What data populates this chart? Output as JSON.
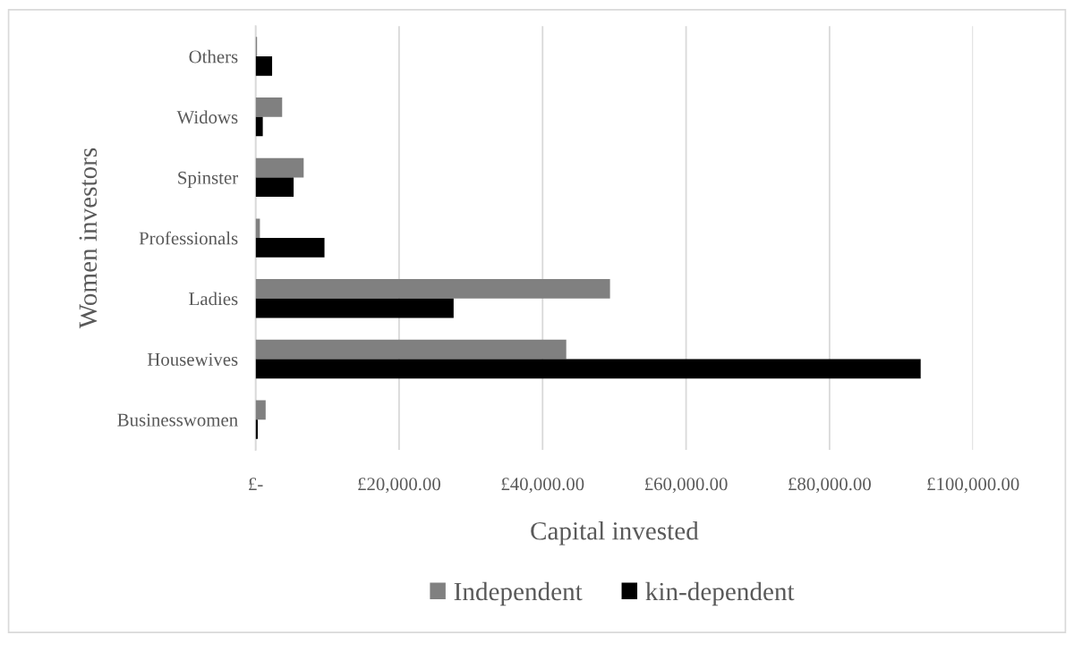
{
  "chart_data": {
    "type": "bar",
    "orientation": "horizontal",
    "xlabel": "Capital invested",
    "ylabel": "Women investors",
    "categories": [
      "Others",
      "Widows",
      "Spinster",
      "Professionals",
      "Ladies",
      "Housewives",
      "Businesswomen"
    ],
    "series": [
      {
        "name": "Independent",
        "color": "#808080",
        "values": [
          200,
          3700,
          6700,
          600,
          49400,
          43300,
          1400
        ]
      },
      {
        "name": "kin-dependent",
        "color": "#000000",
        "values": [
          2300,
          1000,
          5300,
          9600,
          27600,
          92700,
          300
        ]
      }
    ],
    "xlim": [
      0,
      100000
    ],
    "xticks": [
      {
        "value": 0,
        "label": "£-"
      },
      {
        "value": 20000,
        "label": "£20,000.00"
      },
      {
        "value": 40000,
        "label": "£40,000.00"
      },
      {
        "value": 60000,
        "label": "£60,000.00"
      },
      {
        "value": 80000,
        "label": "£80,000.00"
      },
      {
        "value": 100000,
        "label": "£100,000.00"
      }
    ],
    "grid": "x",
    "legend": "bottom"
  }
}
